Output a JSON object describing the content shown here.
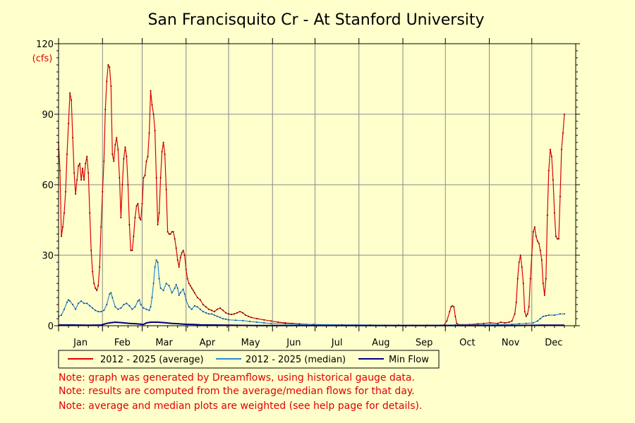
{
  "chart_data": {
    "type": "line",
    "title": "San Francisquito Cr - At Stanford University",
    "ylabel": "(cfs)",
    "xlabel": "",
    "ylim": [
      0,
      120
    ],
    "yticks": [
      "0",
      "30",
      "60",
      "90",
      "120"
    ],
    "ytick_values": [
      0,
      30,
      60,
      90,
      120
    ],
    "xlim": [
      0,
      365
    ],
    "months": [
      "Jan",
      "Feb",
      "Mar",
      "Apr",
      "May",
      "Jun",
      "Jul",
      "Aug",
      "Sep",
      "Oct",
      "Nov",
      "Dec"
    ],
    "month_starts": [
      0,
      31,
      59,
      90,
      120,
      151,
      181,
      212,
      243,
      273,
      304,
      334
    ],
    "grid": true,
    "series": [
      {
        "name": "2012 - 2025 (average)",
        "color": "#dd0000",
        "points": [
          [
            0,
            78
          ],
          [
            1,
            66
          ],
          [
            2,
            38
          ],
          [
            3,
            42
          ],
          [
            4,
            48
          ],
          [
            5,
            57
          ],
          [
            6,
            73
          ],
          [
            7,
            86
          ],
          [
            8,
            99
          ],
          [
            9,
            96
          ],
          [
            10,
            80
          ],
          [
            11,
            65
          ],
          [
            12,
            56
          ],
          [
            13,
            62
          ],
          [
            14,
            68
          ],
          [
            15,
            69
          ],
          [
            16,
            62
          ],
          [
            17,
            67
          ],
          [
            18,
            62
          ],
          [
            19,
            69
          ],
          [
            20,
            72
          ],
          [
            21,
            65
          ],
          [
            22,
            48
          ],
          [
            23,
            32
          ],
          [
            24,
            23
          ],
          [
            25,
            18
          ],
          [
            26,
            16
          ],
          [
            27,
            15
          ],
          [
            28,
            17
          ],
          [
            29,
            25
          ],
          [
            30,
            42
          ],
          [
            31,
            57
          ],
          [
            32,
            70
          ],
          [
            33,
            92
          ],
          [
            34,
            104
          ],
          [
            35,
            111
          ],
          [
            36,
            110
          ],
          [
            37,
            102
          ],
          [
            38,
            73
          ],
          [
            39,
            70
          ],
          [
            40,
            77
          ],
          [
            41,
            80
          ],
          [
            42,
            75
          ],
          [
            43,
            63
          ],
          [
            44,
            46
          ],
          [
            45,
            60
          ],
          [
            46,
            71
          ],
          [
            47,
            76
          ],
          [
            48,
            72
          ],
          [
            49,
            60
          ],
          [
            50,
            43
          ],
          [
            51,
            32
          ],
          [
            52,
            32
          ],
          [
            53,
            38
          ],
          [
            54,
            46
          ],
          [
            55,
            51
          ],
          [
            56,
            52
          ],
          [
            57,
            46
          ],
          [
            58,
            45
          ],
          [
            59,
            52
          ],
          [
            60,
            63
          ],
          [
            61,
            64
          ],
          [
            62,
            70
          ],
          [
            63,
            72
          ],
          [
            64,
            82
          ],
          [
            65,
            100
          ],
          [
            66,
            94
          ],
          [
            67,
            90
          ],
          [
            68,
            83
          ],
          [
            69,
            63
          ],
          [
            70,
            43
          ],
          [
            71,
            48
          ],
          [
            72,
            63
          ],
          [
            73,
            74
          ],
          [
            74,
            78
          ],
          [
            75,
            73
          ],
          [
            76,
            58
          ],
          [
            77,
            40
          ],
          [
            78,
            39
          ],
          [
            79,
            39
          ],
          [
            80,
            40
          ],
          [
            81,
            40
          ],
          [
            82,
            37
          ],
          [
            83,
            33
          ],
          [
            84,
            28
          ],
          [
            85,
            25
          ],
          [
            86,
            29
          ],
          [
            87,
            31
          ],
          [
            88,
            32
          ],
          [
            89,
            30
          ],
          [
            90,
            24
          ],
          [
            91,
            20
          ],
          [
            92,
            18
          ],
          [
            93,
            17
          ],
          [
            94,
            16
          ],
          [
            95,
            15
          ],
          [
            96,
            14
          ],
          [
            98,
            12
          ],
          [
            100,
            11
          ],
          [
            102,
            9
          ],
          [
            104,
            8
          ],
          [
            106,
            7
          ],
          [
            108,
            6.5
          ],
          [
            110,
            6
          ],
          [
            112,
            7
          ],
          [
            114,
            7.5
          ],
          [
            116,
            6.5
          ],
          [
            118,
            5.5
          ],
          [
            120,
            5
          ],
          [
            122,
            4.8
          ],
          [
            124,
            5
          ],
          [
            126,
            5.5
          ],
          [
            128,
            6
          ],
          [
            130,
            5.5
          ],
          [
            132,
            4.5
          ],
          [
            134,
            4
          ],
          [
            136,
            3.5
          ],
          [
            140,
            3
          ],
          [
            145,
            2.5
          ],
          [
            150,
            2
          ],
          [
            155,
            1.5
          ],
          [
            160,
            1.2
          ],
          [
            165,
            1
          ],
          [
            170,
            0.8
          ],
          [
            175,
            0.6
          ],
          [
            180,
            0.5
          ],
          [
            190,
            0.4
          ],
          [
            200,
            0.3
          ],
          [
            210,
            0.3
          ],
          [
            220,
            0.2
          ],
          [
            230,
            0.2
          ],
          [
            240,
            0.2
          ],
          [
            250,
            0.2
          ],
          [
            260,
            0.2
          ],
          [
            270,
            0.2
          ],
          [
            272,
            0.3
          ],
          [
            274,
            2
          ],
          [
            276,
            6
          ],
          [
            277,
            8
          ],
          [
            278,
            8.5
          ],
          [
            279,
            8
          ],
          [
            280,
            4
          ],
          [
            281,
            1
          ],
          [
            282,
            0.5
          ],
          [
            290,
            0.5
          ],
          [
            296,
            0.8
          ],
          [
            300,
            1
          ],
          [
            305,
            1.2
          ],
          [
            310,
            1
          ],
          [
            312,
            1.5
          ],
          [
            315,
            1.2
          ],
          [
            318,
            1.5
          ],
          [
            320,
            2
          ],
          [
            322,
            5
          ],
          [
            323,
            10
          ],
          [
            324,
            20
          ],
          [
            325,
            27
          ],
          [
            326,
            30
          ],
          [
            327,
            25
          ],
          [
            328,
            18
          ],
          [
            329,
            6
          ],
          [
            330,
            4
          ],
          [
            331,
            5
          ],
          [
            332,
            8
          ],
          [
            333,
            20
          ],
          [
            334,
            30
          ],
          [
            335,
            40
          ],
          [
            336,
            42
          ],
          [
            337,
            38
          ],
          [
            338,
            36
          ],
          [
            339,
            35
          ],
          [
            340,
            32
          ],
          [
            341,
            28
          ],
          [
            342,
            18
          ],
          [
            343,
            13
          ],
          [
            344,
            20
          ],
          [
            345,
            47
          ],
          [
            346,
            66
          ],
          [
            347,
            75
          ],
          [
            348,
            72
          ],
          [
            349,
            62
          ],
          [
            350,
            48
          ],
          [
            351,
            38
          ],
          [
            352,
            37
          ],
          [
            353,
            37
          ],
          [
            354,
            55
          ],
          [
            355,
            75
          ],
          [
            356,
            82
          ],
          [
            357,
            90
          ]
        ]
      },
      {
        "name": "2012 - 2025 (median)",
        "color": "#2b88d8",
        "points": [
          [
            0,
            4
          ],
          [
            2,
            4.5
          ],
          [
            4,
            7
          ],
          [
            6,
            10
          ],
          [
            7,
            11
          ],
          [
            8,
            10.5
          ],
          [
            10,
            9
          ],
          [
            12,
            7
          ],
          [
            14,
            9.5
          ],
          [
            16,
            10.5
          ],
          [
            18,
            9.5
          ],
          [
            20,
            9.5
          ],
          [
            22,
            8.5
          ],
          [
            24,
            7.5
          ],
          [
            26,
            6.5
          ],
          [
            28,
            6
          ],
          [
            30,
            6
          ],
          [
            32,
            6.5
          ],
          [
            34,
            9
          ],
          [
            36,
            13.5
          ],
          [
            37,
            14
          ],
          [
            38,
            12
          ],
          [
            40,
            8
          ],
          [
            42,
            7
          ],
          [
            44,
            7.5
          ],
          [
            46,
            9
          ],
          [
            48,
            9.5
          ],
          [
            50,
            8.5
          ],
          [
            52,
            7
          ],
          [
            54,
            8
          ],
          [
            56,
            10.5
          ],
          [
            57,
            11
          ],
          [
            58,
            9
          ],
          [
            60,
            7.5
          ],
          [
            62,
            7
          ],
          [
            64,
            6.5
          ],
          [
            65,
            8
          ],
          [
            66,
            12
          ],
          [
            67,
            18
          ],
          [
            68,
            25
          ],
          [
            69,
            28
          ],
          [
            70,
            27
          ],
          [
            71,
            20
          ],
          [
            72,
            16
          ],
          [
            74,
            15
          ],
          [
            76,
            18
          ],
          [
            78,
            17
          ],
          [
            80,
            14
          ],
          [
            82,
            16
          ],
          [
            83,
            17.5
          ],
          [
            84,
            16
          ],
          [
            85,
            13
          ],
          [
            86,
            14
          ],
          [
            88,
            15.5
          ],
          [
            89,
            13.5
          ],
          [
            90,
            11
          ],
          [
            92,
            8
          ],
          [
            94,
            7
          ],
          [
            96,
            8.5
          ],
          [
            98,
            8
          ],
          [
            100,
            7
          ],
          [
            102,
            6
          ],
          [
            104,
            5.5
          ],
          [
            106,
            5
          ],
          [
            108,
            5
          ],
          [
            110,
            4.5
          ],
          [
            112,
            4
          ],
          [
            114,
            3.5
          ],
          [
            116,
            3
          ],
          [
            118,
            2.8
          ],
          [
            120,
            2.5
          ],
          [
            125,
            2.3
          ],
          [
            130,
            2.2
          ],
          [
            135,
            1.8
          ],
          [
            140,
            1.5
          ],
          [
            145,
            1.2
          ],
          [
            150,
            1
          ],
          [
            160,
            0.8
          ],
          [
            170,
            0.6
          ],
          [
            180,
            0.5
          ],
          [
            200,
            0.4
          ],
          [
            220,
            0.3
          ],
          [
            240,
            0.2
          ],
          [
            260,
            0.2
          ],
          [
            280,
            0.3
          ],
          [
            300,
            0.4
          ],
          [
            310,
            0.5
          ],
          [
            320,
            0.6
          ],
          [
            325,
            0.8
          ],
          [
            330,
            1
          ],
          [
            335,
            1.2
          ],
          [
            338,
            2
          ],
          [
            340,
            3
          ],
          [
            342,
            4
          ],
          [
            344,
            4.2
          ],
          [
            346,
            4.5
          ],
          [
            350,
            4.5
          ],
          [
            354,
            5
          ],
          [
            357,
            5
          ]
        ]
      },
      {
        "name": "Min Flow",
        "color": "#000080",
        "points": [
          [
            0,
            0.3
          ],
          [
            10,
            0.3
          ],
          [
            20,
            0.2
          ],
          [
            30,
            0.3
          ],
          [
            34,
            1
          ],
          [
            36,
            1.2
          ],
          [
            40,
            1.5
          ],
          [
            45,
            1.3
          ],
          [
            50,
            1
          ],
          [
            55,
            0.8
          ],
          [
            60,
            0.5
          ],
          [
            62,
            1.2
          ],
          [
            65,
            1.5
          ],
          [
            70,
            1.5
          ],
          [
            75,
            1.3
          ],
          [
            80,
            1
          ],
          [
            85,
            0.8
          ],
          [
            90,
            0.6
          ],
          [
            95,
            0.5
          ],
          [
            100,
            0.4
          ],
          [
            110,
            0.3
          ],
          [
            120,
            0.2
          ],
          [
            140,
            0.1
          ],
          [
            160,
            0.1
          ],
          [
            200,
            0.1
          ],
          [
            240,
            0.1
          ],
          [
            280,
            0.1
          ],
          [
            320,
            0.1
          ],
          [
            340,
            0.2
          ],
          [
            357,
            0.2
          ]
        ]
      }
    ],
    "legend_position": "bottom"
  },
  "notes": [
    "Note: graph was generated by Dreamflows, using historical gauge data.",
    "Note: results are computed from the average/median flows for that day.",
    "Note: average and median plots are weighted (see help page for details)."
  ]
}
